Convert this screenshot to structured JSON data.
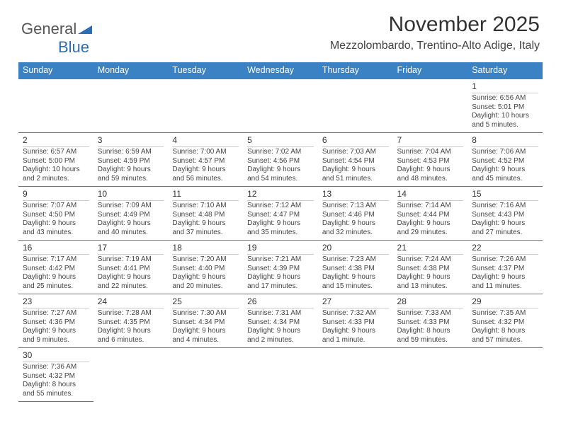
{
  "logo": {
    "text1": "General",
    "text2": "Blue"
  },
  "title": "November 2025",
  "subtitle": "Mezzolombardo, Trentino-Alto Adige, Italy",
  "colors": {
    "header_bg": "#3b82c4",
    "header_fg": "#ffffff",
    "rule": "#3b82c4"
  },
  "dayHeaders": [
    "Sunday",
    "Monday",
    "Tuesday",
    "Wednesday",
    "Thursday",
    "Friday",
    "Saturday"
  ],
  "weeks": [
    [
      null,
      null,
      null,
      null,
      null,
      null,
      {
        "n": "1",
        "sunrise": "Sunrise: 6:56 AM",
        "sunset": "Sunset: 5:01 PM",
        "daylight": "Daylight: 10 hours and 5 minutes."
      }
    ],
    [
      {
        "n": "2",
        "sunrise": "Sunrise: 6:57 AM",
        "sunset": "Sunset: 5:00 PM",
        "daylight": "Daylight: 10 hours and 2 minutes."
      },
      {
        "n": "3",
        "sunrise": "Sunrise: 6:59 AM",
        "sunset": "Sunset: 4:59 PM",
        "daylight": "Daylight: 9 hours and 59 minutes."
      },
      {
        "n": "4",
        "sunrise": "Sunrise: 7:00 AM",
        "sunset": "Sunset: 4:57 PM",
        "daylight": "Daylight: 9 hours and 56 minutes."
      },
      {
        "n": "5",
        "sunrise": "Sunrise: 7:02 AM",
        "sunset": "Sunset: 4:56 PM",
        "daylight": "Daylight: 9 hours and 54 minutes."
      },
      {
        "n": "6",
        "sunrise": "Sunrise: 7:03 AM",
        "sunset": "Sunset: 4:54 PM",
        "daylight": "Daylight: 9 hours and 51 minutes."
      },
      {
        "n": "7",
        "sunrise": "Sunrise: 7:04 AM",
        "sunset": "Sunset: 4:53 PM",
        "daylight": "Daylight: 9 hours and 48 minutes."
      },
      {
        "n": "8",
        "sunrise": "Sunrise: 7:06 AM",
        "sunset": "Sunset: 4:52 PM",
        "daylight": "Daylight: 9 hours and 45 minutes."
      }
    ],
    [
      {
        "n": "9",
        "sunrise": "Sunrise: 7:07 AM",
        "sunset": "Sunset: 4:50 PM",
        "daylight": "Daylight: 9 hours and 43 minutes."
      },
      {
        "n": "10",
        "sunrise": "Sunrise: 7:09 AM",
        "sunset": "Sunset: 4:49 PM",
        "daylight": "Daylight: 9 hours and 40 minutes."
      },
      {
        "n": "11",
        "sunrise": "Sunrise: 7:10 AM",
        "sunset": "Sunset: 4:48 PM",
        "daylight": "Daylight: 9 hours and 37 minutes."
      },
      {
        "n": "12",
        "sunrise": "Sunrise: 7:12 AM",
        "sunset": "Sunset: 4:47 PM",
        "daylight": "Daylight: 9 hours and 35 minutes."
      },
      {
        "n": "13",
        "sunrise": "Sunrise: 7:13 AM",
        "sunset": "Sunset: 4:46 PM",
        "daylight": "Daylight: 9 hours and 32 minutes."
      },
      {
        "n": "14",
        "sunrise": "Sunrise: 7:14 AM",
        "sunset": "Sunset: 4:44 PM",
        "daylight": "Daylight: 9 hours and 29 minutes."
      },
      {
        "n": "15",
        "sunrise": "Sunrise: 7:16 AM",
        "sunset": "Sunset: 4:43 PM",
        "daylight": "Daylight: 9 hours and 27 minutes."
      }
    ],
    [
      {
        "n": "16",
        "sunrise": "Sunrise: 7:17 AM",
        "sunset": "Sunset: 4:42 PM",
        "daylight": "Daylight: 9 hours and 25 minutes."
      },
      {
        "n": "17",
        "sunrise": "Sunrise: 7:19 AM",
        "sunset": "Sunset: 4:41 PM",
        "daylight": "Daylight: 9 hours and 22 minutes."
      },
      {
        "n": "18",
        "sunrise": "Sunrise: 7:20 AM",
        "sunset": "Sunset: 4:40 PM",
        "daylight": "Daylight: 9 hours and 20 minutes."
      },
      {
        "n": "19",
        "sunrise": "Sunrise: 7:21 AM",
        "sunset": "Sunset: 4:39 PM",
        "daylight": "Daylight: 9 hours and 17 minutes."
      },
      {
        "n": "20",
        "sunrise": "Sunrise: 7:23 AM",
        "sunset": "Sunset: 4:38 PM",
        "daylight": "Daylight: 9 hours and 15 minutes."
      },
      {
        "n": "21",
        "sunrise": "Sunrise: 7:24 AM",
        "sunset": "Sunset: 4:38 PM",
        "daylight": "Daylight: 9 hours and 13 minutes."
      },
      {
        "n": "22",
        "sunrise": "Sunrise: 7:26 AM",
        "sunset": "Sunset: 4:37 PM",
        "daylight": "Daylight: 9 hours and 11 minutes."
      }
    ],
    [
      {
        "n": "23",
        "sunrise": "Sunrise: 7:27 AM",
        "sunset": "Sunset: 4:36 PM",
        "daylight": "Daylight: 9 hours and 9 minutes."
      },
      {
        "n": "24",
        "sunrise": "Sunrise: 7:28 AM",
        "sunset": "Sunset: 4:35 PM",
        "daylight": "Daylight: 9 hours and 6 minutes."
      },
      {
        "n": "25",
        "sunrise": "Sunrise: 7:30 AM",
        "sunset": "Sunset: 4:34 PM",
        "daylight": "Daylight: 9 hours and 4 minutes."
      },
      {
        "n": "26",
        "sunrise": "Sunrise: 7:31 AM",
        "sunset": "Sunset: 4:34 PM",
        "daylight": "Daylight: 9 hours and 2 minutes."
      },
      {
        "n": "27",
        "sunrise": "Sunrise: 7:32 AM",
        "sunset": "Sunset: 4:33 PM",
        "daylight": "Daylight: 9 hours and 1 minute."
      },
      {
        "n": "28",
        "sunrise": "Sunrise: 7:33 AM",
        "sunset": "Sunset: 4:33 PM",
        "daylight": "Daylight: 8 hours and 59 minutes."
      },
      {
        "n": "29",
        "sunrise": "Sunrise: 7:35 AM",
        "sunset": "Sunset: 4:32 PM",
        "daylight": "Daylight: 8 hours and 57 minutes."
      }
    ],
    [
      {
        "n": "30",
        "sunrise": "Sunrise: 7:36 AM",
        "sunset": "Sunset: 4:32 PM",
        "daylight": "Daylight: 8 hours and 55 minutes."
      },
      null,
      null,
      null,
      null,
      null,
      null
    ]
  ]
}
